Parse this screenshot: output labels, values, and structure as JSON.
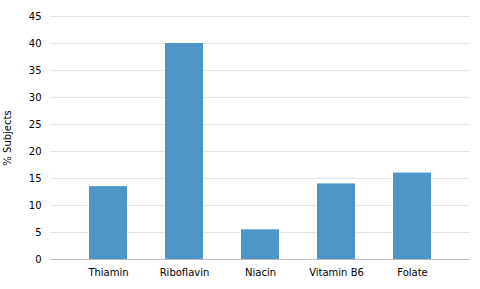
{
  "chart_data": {
    "type": "bar",
    "categories": [
      "Thiamin",
      "Riboflavin",
      "Niacin",
      "Vitamin B6",
      "Folate"
    ],
    "values": [
      13.5,
      40.0,
      5.5,
      14.0,
      16.0
    ],
    "color": "#4f96c8",
    "ylabel": "% Subjects",
    "ylim": [
      0,
      45
    ],
    "yticks": [
      0,
      5,
      10,
      15,
      20,
      25,
      30,
      35,
      40,
      45
    ],
    "grid": true
  }
}
